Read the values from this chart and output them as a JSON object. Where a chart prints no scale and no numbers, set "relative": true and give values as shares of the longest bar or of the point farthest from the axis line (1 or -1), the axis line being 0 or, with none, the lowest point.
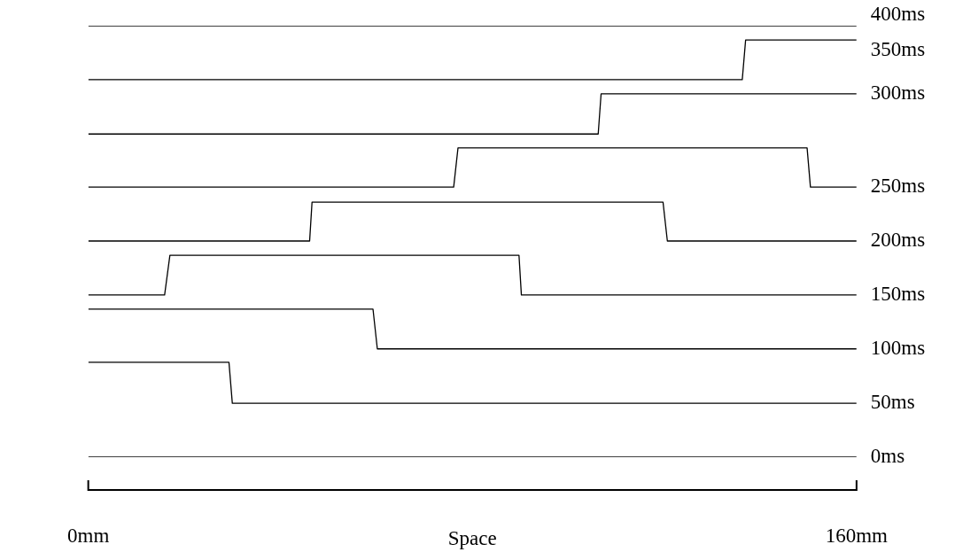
{
  "chart_data": {
    "type": "line",
    "relative": true,
    "xlabel": "Space",
    "xlim": [
      0,
      160
    ],
    "xticks": [
      {
        "value": 0,
        "label": "0mm"
      },
      {
        "value": 160,
        "label": "160mm"
      }
    ],
    "grid": false,
    "legend": false,
    "marker": "none",
    "line_style": "solid",
    "series": [
      {
        "name": "0ms",
        "color": "#000000",
        "x": [
          0,
          160
        ],
        "values": [
          0,
          0
        ]
      },
      {
        "name": "50ms",
        "color": "#000000",
        "x": [
          0,
          29.3,
          30,
          160
        ],
        "values": [
          0.22,
          0.22,
          0.125,
          0.125
        ]
      },
      {
        "name": "100ms",
        "color": "#000000",
        "x": [
          0,
          59.3,
          60.2,
          160
        ],
        "values": [
          0.343,
          0.343,
          0.251,
          0.251
        ]
      },
      {
        "name": "150ms",
        "color": "#000000",
        "x": [
          0,
          15.9,
          17,
          89.7,
          90.2,
          160
        ],
        "values": [
          0.376,
          0.376,
          0.468,
          0.468,
          0.376,
          0.376
        ]
      },
      {
        "name": "200ms",
        "color": "#000000",
        "x": [
          0,
          46.1,
          46.6,
          119.7,
          120.6,
          160
        ],
        "values": [
          0.501,
          0.501,
          0.591,
          0.591,
          0.501,
          0.501
        ]
      },
      {
        "name": "250ms",
        "color": "#000000",
        "x": [
          0,
          76.1,
          77,
          149.7,
          150.4,
          160
        ],
        "values": [
          0.626,
          0.626,
          0.717,
          0.717,
          0.626,
          0.626
        ]
      },
      {
        "name": "300ms",
        "color": "#000000",
        "x": [
          0,
          106.2,
          106.8,
          160
        ],
        "values": [
          0.749,
          0.749,
          0.842,
          0.842
        ]
      },
      {
        "name": "350ms",
        "color": "#000000",
        "x": [
          0,
          136.2,
          136.9,
          160
        ],
        "values": [
          0.875,
          0.875,
          0.967,
          0.967
        ]
      },
      {
        "name": "400ms",
        "color": "#000000",
        "x": [
          0,
          160
        ],
        "values": [
          1,
          1
        ]
      }
    ]
  }
}
